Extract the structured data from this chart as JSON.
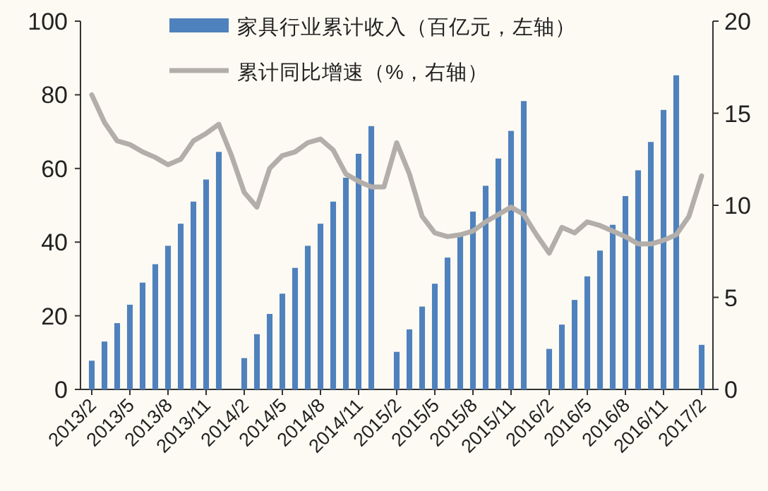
{
  "chart_data": {
    "type": "bar",
    "categories": [
      "2013/2",
      null,
      null,
      "2013/5",
      null,
      null,
      "2013/8",
      null,
      null,
      "2013/11",
      null,
      null,
      "2014/2",
      null,
      null,
      "2014/5",
      null,
      null,
      "2014/8",
      null,
      null,
      "2014/11",
      null,
      null,
      "2015/2",
      null,
      null,
      "2015/5",
      null,
      null,
      "2015/8",
      null,
      null,
      "2015/11",
      null,
      null,
      "2016/2",
      null,
      null,
      "2016/5",
      null,
      null,
      "2016/8",
      null,
      null,
      "2016/11",
      null,
      null,
      "2017/2"
    ],
    "series": [
      {
        "name": "家具行业累计收入（百亿元，左轴）",
        "color": "#4f81bd",
        "values": [
          7.8,
          13,
          18,
          23,
          29,
          34,
          39,
          45,
          51,
          57,
          64.5,
          null,
          8.5,
          15,
          20.5,
          26,
          33,
          39,
          45,
          51,
          57.5,
          64,
          71.5,
          null,
          10.2,
          16.3,
          22.5,
          28.7,
          35.8,
          41.6,
          48.3,
          55.3,
          62.7,
          70.2,
          78.3,
          null,
          11,
          17.6,
          24.3,
          30.7,
          37.7,
          44.7,
          52.5,
          59.5,
          67.2,
          75.9,
          85.3,
          null,
          12.1
        ]
      },
      {
        "name": "累计同比增速（%，右轴）",
        "type": "line",
        "axis": "y2",
        "color": "#b3aea9",
        "values": [
          16.0,
          14.5,
          13.5,
          13.3,
          12.9,
          12.6,
          12.2,
          12.5,
          13.5,
          13.9,
          14.4,
          12.7,
          10.7,
          9.9,
          12.0,
          12.7,
          12.9,
          13.4,
          13.6,
          13.0,
          11.7,
          11.3,
          11.0,
          11.0,
          13.4,
          11.7,
          9.4,
          8.5,
          8.3,
          8.4,
          8.6,
          9.1,
          9.5,
          9.9,
          9.5,
          8.4,
          7.4,
          8.8,
          8.5,
          9.1,
          8.9,
          8.6,
          8.3,
          7.9,
          7.9,
          8.1,
          8.4,
          9.4,
          11.6
        ]
      }
    ],
    "ylim": [
      0,
      100
    ],
    "yticks": [
      0,
      20,
      40,
      60,
      80,
      100
    ],
    "y2lim": [
      0,
      20
    ],
    "y2ticks": [
      0,
      5,
      10,
      15,
      20
    ],
    "legend": "top"
  }
}
